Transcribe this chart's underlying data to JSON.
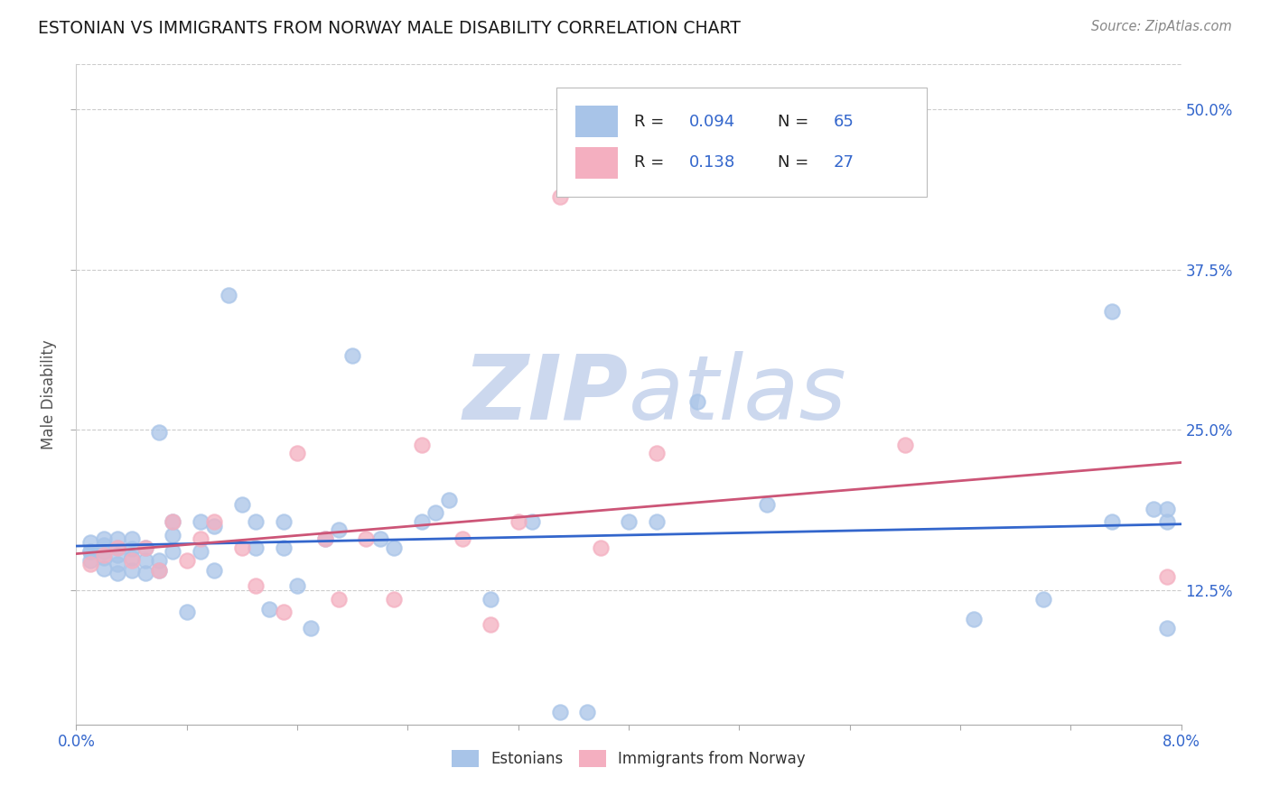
{
  "title": "ESTONIAN VS IMMIGRANTS FROM NORWAY MALE DISABILITY CORRELATION CHART",
  "source": "Source: ZipAtlas.com",
  "ylabel": "Male Disability",
  "ytick_labels": [
    "12.5%",
    "25.0%",
    "37.5%",
    "50.0%"
  ],
  "ytick_values": [
    0.125,
    0.25,
    0.375,
    0.5
  ],
  "xmin": 0.0,
  "xmax": 0.08,
  "ymin": 0.02,
  "ymax": 0.535,
  "color_estonian": "#a8c4e8",
  "color_norway": "#f4afc0",
  "color_line_estonian": "#3366cc",
  "color_line_norway": "#cc5577",
  "color_title": "#1a1a1a",
  "color_source": "#888888",
  "color_legend_text_blue": "#3366cc",
  "color_legend_text_black": "#222222",
  "watermark_zip": "#ccd8ee",
  "watermark_atlas": "#ccd8ee",
  "est_x": [
    0.001,
    0.001,
    0.001,
    0.001,
    0.002,
    0.002,
    0.002,
    0.002,
    0.002,
    0.003,
    0.003,
    0.003,
    0.003,
    0.003,
    0.004,
    0.004,
    0.004,
    0.004,
    0.005,
    0.005,
    0.005,
    0.006,
    0.006,
    0.006,
    0.007,
    0.007,
    0.007,
    0.008,
    0.009,
    0.009,
    0.01,
    0.01,
    0.011,
    0.012,
    0.013,
    0.013,
    0.014,
    0.015,
    0.015,
    0.016,
    0.017,
    0.018,
    0.019,
    0.02,
    0.022,
    0.023,
    0.025,
    0.026,
    0.027,
    0.03,
    0.033,
    0.035,
    0.037,
    0.04,
    0.042,
    0.045,
    0.05,
    0.065,
    0.07,
    0.075,
    0.075,
    0.078,
    0.079,
    0.079,
    0.079
  ],
  "est_y": [
    0.155,
    0.148,
    0.155,
    0.162,
    0.142,
    0.15,
    0.155,
    0.16,
    0.165,
    0.138,
    0.145,
    0.152,
    0.158,
    0.165,
    0.14,
    0.15,
    0.157,
    0.165,
    0.138,
    0.148,
    0.158,
    0.14,
    0.148,
    0.248,
    0.155,
    0.168,
    0.178,
    0.108,
    0.155,
    0.178,
    0.14,
    0.175,
    0.355,
    0.192,
    0.158,
    0.178,
    0.11,
    0.158,
    0.178,
    0.128,
    0.095,
    0.165,
    0.172,
    0.308,
    0.165,
    0.158,
    0.178,
    0.185,
    0.195,
    0.118,
    0.178,
    0.03,
    0.03,
    0.178,
    0.178,
    0.272,
    0.192,
    0.102,
    0.118,
    0.178,
    0.342,
    0.188,
    0.188,
    0.178,
    0.095
  ],
  "nor_x": [
    0.001,
    0.002,
    0.003,
    0.004,
    0.005,
    0.006,
    0.007,
    0.008,
    0.009,
    0.01,
    0.012,
    0.013,
    0.015,
    0.016,
    0.018,
    0.019,
    0.021,
    0.023,
    0.025,
    0.028,
    0.03,
    0.032,
    0.035,
    0.038,
    0.042,
    0.06,
    0.079
  ],
  "nor_y": [
    0.145,
    0.152,
    0.158,
    0.148,
    0.158,
    0.14,
    0.178,
    0.148,
    0.165,
    0.178,
    0.158,
    0.128,
    0.108,
    0.232,
    0.165,
    0.118,
    0.165,
    0.118,
    0.238,
    0.165,
    0.098,
    0.178,
    0.432,
    0.158,
    0.232,
    0.238,
    0.135
  ]
}
